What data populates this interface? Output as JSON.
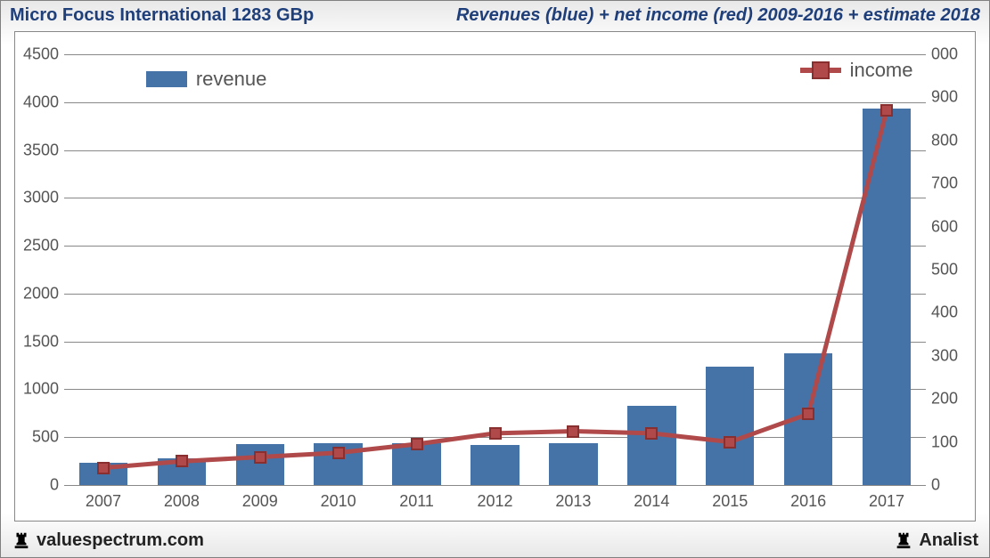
{
  "title_left": "Micro Focus International 1283 GBp",
  "title_right": "Revenues (blue) + net income (red) 2009-2016 + estimate 2018",
  "footer_left": "valuespectrum.com",
  "footer_right": "Analist",
  "chart": {
    "type": "bar+line",
    "background_color": "#ffffff",
    "grid_color": "#888888",
    "border_color": "#888888",
    "text_color": "#555555",
    "title_color": "#1f3f7a",
    "title_fontsize": 20,
    "axis_label_fontsize": 18,
    "legend_fontsize": 22,
    "categories": [
      "2007",
      "2008",
      "2009",
      "2010",
      "2011",
      "2012",
      "2013",
      "2014",
      "2015",
      "2016",
      "2017"
    ],
    "bar_series": {
      "label": "revenue",
      "color": "#4573a7",
      "values": [
        230,
        280,
        430,
        440,
        440,
        420,
        440,
        830,
        1240,
        1380,
        3930
      ],
      "bar_width": 0.62
    },
    "line_series": {
      "label": "income",
      "color": "#b04a4a",
      "border_color": "#8a2f2f",
      "line_width": 5,
      "marker_size": 14,
      "marker_style": "square",
      "values": [
        40,
        55,
        65,
        75,
        95,
        120,
        125,
        120,
        100,
        165,
        870
      ]
    },
    "y_left": {
      "min": 0,
      "max": 4500,
      "step": 500
    },
    "y_right": {
      "min": 0,
      "max": 1000,
      "step": 100
    },
    "legend_bar_pos": {
      "left_pct": 9.5,
      "top_pct": 3
    },
    "legend_line_pos": {
      "right_pct": 1.5,
      "top_pct": 1
    }
  }
}
